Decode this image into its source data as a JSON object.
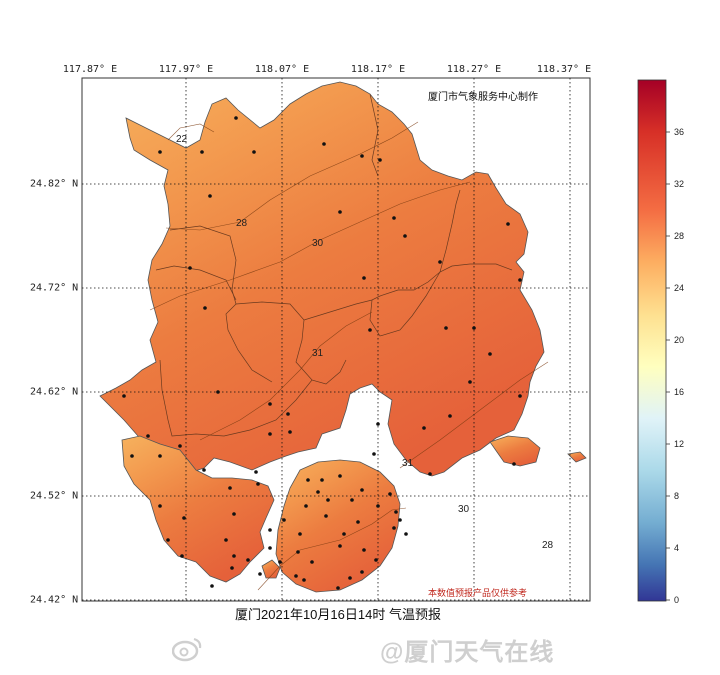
{
  "map": {
    "producer": "厦门市气象服务中心制作",
    "disclaimer": "本数值预报产品仅供参考",
    "caption": "厦门2021年10月16日14时 气温预报",
    "longitudes": [
      "117.87° E",
      "117.97° E",
      "118.07° E",
      "118.17° E",
      "118.27° E",
      "118.37° E"
    ],
    "latitudes": [
      "24.82° N",
      "24.72° N",
      "24.62° N",
      "24.52° N",
      "24.42° N"
    ],
    "contour_labels": [
      "22",
      "28",
      "30",
      "31",
      "31",
      "30",
      "28"
    ],
    "variable": "气温"
  },
  "colorbar": {
    "ticks": [
      "36",
      "32",
      "28",
      "24",
      "20",
      "16",
      "12",
      "8",
      "4",
      "0"
    ],
    "range": [
      0,
      40
    ],
    "colors_top_to_bottom": [
      "#a50026",
      "#d73027",
      "#f46d43",
      "#fdae61",
      "#fee090",
      "#ffffbf",
      "#e0f3f8",
      "#abd9e9",
      "#74add1",
      "#4575b4",
      "#313695"
    ]
  },
  "watermark": {
    "text": "@厦门天气在线"
  }
}
